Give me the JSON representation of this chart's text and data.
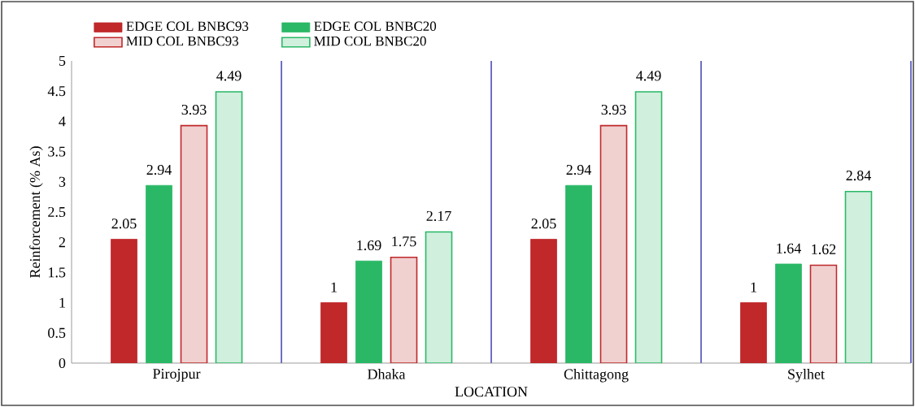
{
  "chart_data": {
    "type": "bar",
    "xlabel": "LOCATION",
    "ylabel": "Reinforcement (% As)",
    "categories": [
      "Pirojpur",
      "Dhaka",
      "Chittagong",
      "Sylhet"
    ],
    "series": [
      {
        "name": "EDGE COL BNBC93",
        "color": "#c0282a",
        "values": [
          2.05,
          1,
          2.05,
          1
        ]
      },
      {
        "name": "EDGE COL BNBC20",
        "color": "#2bb866",
        "values": [
          2.94,
          1.69,
          2.94,
          1.64
        ]
      },
      {
        "name": "MID COL BNBC93",
        "color": "#f1d0d0",
        "values": [
          3.93,
          1.75,
          3.93,
          1.62
        ]
      },
      {
        "name": "MID COL BNBC20",
        "color": "#d0efdd",
        "values": [
          4.49,
          2.17,
          4.49,
          2.84
        ]
      }
    ],
    "ylim": [
      0,
      5
    ],
    "yticks": [
      0,
      0.5,
      1,
      1.5,
      2,
      2.5,
      3,
      3.5,
      4,
      4.5,
      5
    ],
    "grid": "x",
    "legend": "top left",
    "data_labels": true
  }
}
